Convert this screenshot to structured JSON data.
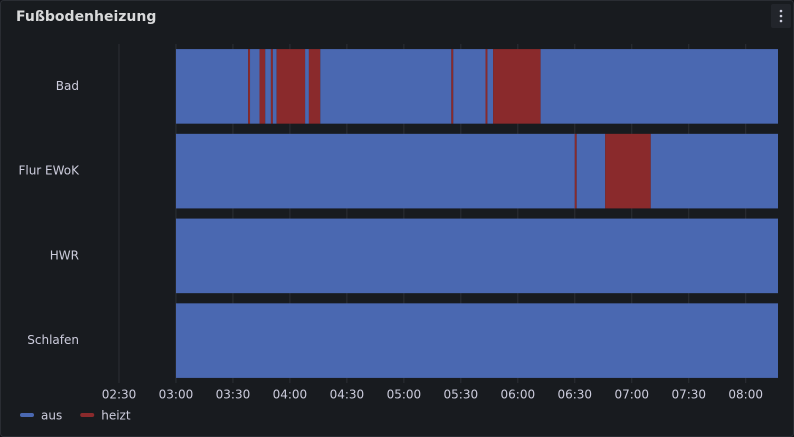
{
  "chart_data": {
    "type": "state-timeline",
    "title": "Fußbodenheizung",
    "xlim": [
      140,
      497
    ],
    "xticks": [
      {
        "value": 150,
        "label": "02:30"
      },
      {
        "value": 180,
        "label": "03:00"
      },
      {
        "value": 210,
        "label": "03:30"
      },
      {
        "value": 240,
        "label": "04:00"
      },
      {
        "value": 270,
        "label": "04:30"
      },
      {
        "value": 300,
        "label": "05:00"
      },
      {
        "value": 330,
        "label": "05:30"
      },
      {
        "value": 360,
        "label": "06:00"
      },
      {
        "value": 390,
        "label": "06:30"
      },
      {
        "value": 420,
        "label": "07:00"
      },
      {
        "value": 450,
        "label": "07:30"
      },
      {
        "value": 480,
        "label": "08:00"
      }
    ],
    "states": [
      {
        "name": "aus",
        "color": "#4a68b1"
      },
      {
        "name": "heizt",
        "color": "#8a2a2c"
      }
    ],
    "rows": [
      {
        "name": "Bad",
        "x": [
          180,
          218,
          219,
          224,
          227,
          230,
          231,
          233,
          248,
          250,
          256,
          325,
          326,
          343,
          344,
          347,
          372
        ],
        "values": [
          "aus",
          "heizt",
          "aus",
          "heizt",
          "aus",
          "heizt",
          "aus",
          "heizt",
          "aus",
          "heizt",
          "aus",
          "heizt",
          "aus",
          "heizt",
          "aus",
          "heizt",
          "aus"
        ]
      },
      {
        "name": "Flur EWoK",
        "x": [
          180,
          390,
          391,
          406,
          430
        ],
        "values": [
          "aus",
          "heizt",
          "aus",
          "heizt",
          "aus"
        ]
      },
      {
        "name": "HWR",
        "x": [
          180
        ],
        "values": [
          "aus"
        ]
      },
      {
        "name": "Schlafen",
        "x": [
          180
        ],
        "values": [
          "aus"
        ]
      }
    ]
  }
}
